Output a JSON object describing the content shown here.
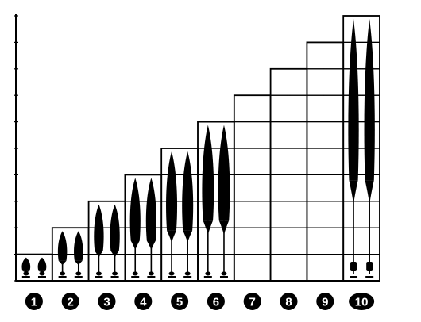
{
  "colors": {
    "ink": "#000000",
    "paper": "#ffffff"
  },
  "steps": [
    {
      "label": "1",
      "level": 1,
      "drawn": true
    },
    {
      "label": "2",
      "level": 2,
      "drawn": true
    },
    {
      "label": "3",
      "level": 3,
      "drawn": true
    },
    {
      "label": "4",
      "level": 4,
      "drawn": true
    },
    {
      "label": "5",
      "level": 5,
      "drawn": true
    },
    {
      "label": "6",
      "level": 6,
      "drawn": true
    },
    {
      "label": "7",
      "level": 7,
      "drawn": false
    },
    {
      "label": "8",
      "level": 8,
      "drawn": false
    },
    {
      "label": "9",
      "level": 9,
      "drawn": false
    },
    {
      "label": "10",
      "level": 10,
      "drawn": true
    }
  ]
}
